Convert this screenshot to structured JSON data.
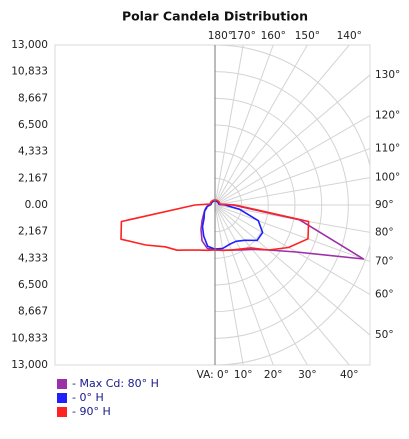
{
  "chart_data": {
    "type": "polar",
    "title": "Polar Candela Distribution",
    "x": [
      0,
      10,
      20,
      30,
      40,
      50,
      60,
      70,
      80,
      90,
      100,
      110,
      120,
      130,
      140,
      150,
      160,
      170,
      180,
      190,
      200,
      210,
      220,
      230,
      240,
      250,
      260,
      270,
      280,
      290,
      300,
      310,
      320,
      330,
      340,
      350
    ],
    "series": [
      {
        "name": "- Max Cd: 80° H",
        "color": "#9b30a8",
        "values": [
          3650,
          3740,
          3900,
          4220,
          4710,
          5690,
          7640,
          12840,
          6990,
          1460,
          330,
          330,
          330,
          330,
          330,
          330,
          330,
          330,
          330,
          330,
          330,
          330,
          330,
          330,
          330,
          330,
          330,
          410,
          650,
          810,
          980,
          1220,
          1630,
          2280,
          3090,
          3580
        ]
      },
      {
        "name": "- 0° H",
        "color": "#1f1fff",
        "values": [
          3580,
          3580,
          3410,
          3410,
          3740,
          4470,
          4470,
          3740,
          2030,
          810,
          330,
          330,
          330,
          330,
          330,
          330,
          330,
          330,
          330,
          330,
          330,
          330,
          330,
          330,
          330,
          330,
          330,
          410,
          650,
          730,
          980,
          1140,
          1380,
          2030,
          2680,
          3410
        ]
      },
      {
        "name": "- 90° H",
        "color": "#ff2222",
        "values": [
          3650,
          3740,
          3900,
          4140,
          4550,
          5690,
          6900,
          8040,
          7720,
          1630,
          410,
          410,
          410,
          410,
          410,
          410,
          410,
          410,
          410,
          410,
          410,
          410,
          410,
          410,
          410,
          410,
          410,
          1630,
          7720,
          8130,
          6500,
          5280,
          4790,
          4230,
          3900,
          3740
        ]
      }
    ],
    "rlim": [
      0,
      13000
    ],
    "rticks": [
      {
        "value": 0,
        "label": "0.00"
      },
      {
        "value": 2167,
        "label": "2,167"
      },
      {
        "value": 4333,
        "label": "4,333"
      },
      {
        "value": 6500,
        "label": "6,500"
      },
      {
        "value": 8667,
        "label": "8,667"
      },
      {
        "value": 10833,
        "label": "10,833"
      },
      {
        "value": 13000,
        "label": "13,000"
      }
    ],
    "thetaticks": [
      {
        "value": 0,
        "label": "VA: 0°"
      },
      {
        "value": 10,
        "label": "10°"
      },
      {
        "value": 20,
        "label": "20°"
      },
      {
        "value": 30,
        "label": "30°"
      },
      {
        "value": 40,
        "label": "40°"
      },
      {
        "value": 50,
        "label": "50°"
      },
      {
        "value": 60,
        "label": "60°"
      },
      {
        "value": 70,
        "label": "70°"
      },
      {
        "value": 80,
        "label": "80°"
      },
      {
        "value": 90,
        "label": "90°"
      },
      {
        "value": 100,
        "label": "100°"
      },
      {
        "value": 110,
        "label": "110°"
      },
      {
        "value": 120,
        "label": "120°"
      },
      {
        "value": 130,
        "label": "130°"
      },
      {
        "value": 140,
        "label": "140°"
      },
      {
        "value": 150,
        "label": "150°"
      },
      {
        "value": 160,
        "label": "160°"
      },
      {
        "value": 170,
        "label": "170°"
      },
      {
        "value": 180,
        "label": "180°"
      }
    ],
    "grid": true
  }
}
